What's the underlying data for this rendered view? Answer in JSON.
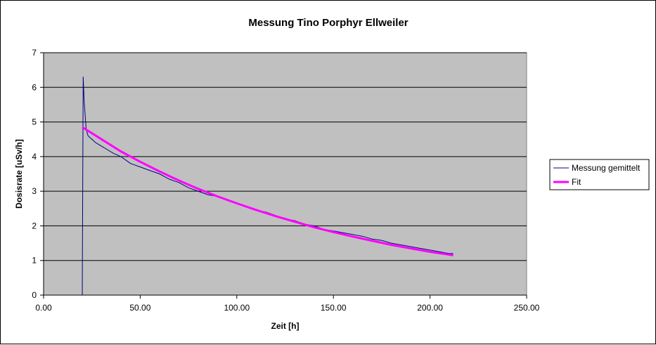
{
  "chart_data": {
    "type": "line",
    "title": "Messung Tino Porphyr Ellweiler",
    "xlabel": "Zeit [h]",
    "ylabel": "Dosisrate [uSv/h]",
    "xlim": [
      0,
      250
    ],
    "ylim": [
      0,
      7
    ],
    "x_ticks": [
      "0.00",
      "50.00",
      "100.00",
      "150.00",
      "200.00",
      "250.00"
    ],
    "y_ticks": [
      "0",
      "1",
      "2",
      "3",
      "4",
      "5",
      "6",
      "7"
    ],
    "grid": "horizontal",
    "legend_position": "right",
    "plot_background": "#c0c0c0",
    "series": [
      {
        "name": "Messung gemittelt",
        "color": "#000080",
        "style": "thin-line",
        "x": [
          20,
          20.5,
          21,
          22,
          23,
          25,
          27,
          30,
          33,
          36,
          40,
          45,
          50,
          55,
          60,
          65,
          70,
          75,
          80,
          85,
          90,
          95,
          100,
          105,
          110,
          115,
          120,
          125,
          130,
          135,
          140,
          145,
          150,
          155,
          160,
          165,
          170,
          175,
          180,
          185,
          190,
          195,
          200,
          205,
          210,
          212
        ],
        "y": [
          0,
          6.3,
          5.6,
          4.8,
          4.6,
          4.5,
          4.4,
          4.3,
          4.2,
          4.1,
          4.0,
          3.8,
          3.7,
          3.6,
          3.5,
          3.35,
          3.25,
          3.1,
          3.0,
          2.9,
          2.85,
          2.75,
          2.65,
          2.55,
          2.45,
          2.4,
          2.3,
          2.2,
          2.15,
          2.05,
          2.0,
          1.9,
          1.85,
          1.8,
          1.75,
          1.7,
          1.62,
          1.58,
          1.5,
          1.45,
          1.4,
          1.35,
          1.3,
          1.25,
          1.2,
          1.2
        ]
      },
      {
        "name": "Fit",
        "color": "#ff00ff",
        "style": "thick-line",
        "x": [
          20,
          30,
          40,
          50,
          60,
          70,
          80,
          90,
          100,
          110,
          120,
          130,
          140,
          150,
          160,
          170,
          180,
          190,
          200,
          212
        ],
        "y": [
          4.85,
          4.5,
          4.15,
          3.85,
          3.57,
          3.31,
          3.07,
          2.85,
          2.65,
          2.46,
          2.28,
          2.12,
          1.96,
          1.82,
          1.69,
          1.57,
          1.45,
          1.35,
          1.25,
          1.15
        ]
      }
    ]
  }
}
